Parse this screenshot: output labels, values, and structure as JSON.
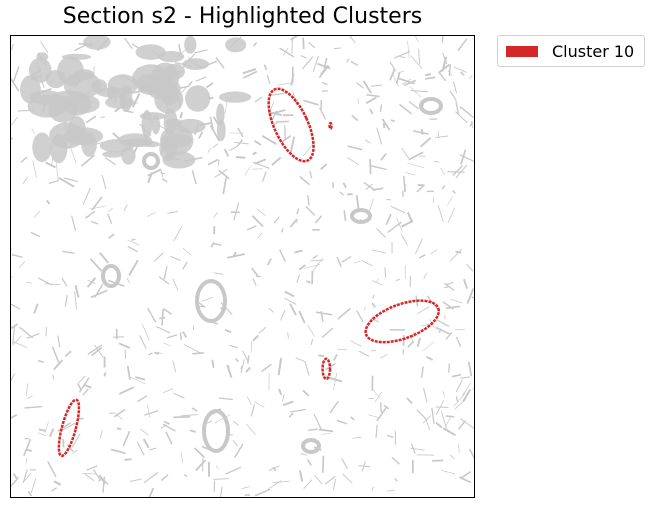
{
  "chart_data": {
    "type": "scatter",
    "title": "Section s2 - Highlighted Clusters",
    "xlabel": "",
    "ylabel": "",
    "axes_visible": false,
    "grid": false,
    "legend_position": "outside-top-right",
    "background_color": "#c8c8c8",
    "series": [
      {
        "name": "Cluster 10",
        "color": "#d62728",
        "regions": [
          {
            "cx": 0.605,
            "cy": 0.807,
            "rx": 0.036,
            "ry": 0.085,
            "angle": -25
          },
          {
            "cx": 0.845,
            "cy": 0.381,
            "rx": 0.083,
            "ry": 0.037,
            "angle": -20
          },
          {
            "cx": 0.681,
            "cy": 0.278,
            "rx": 0.008,
            "ry": 0.022,
            "angle": 0
          },
          {
            "cx": 0.125,
            "cy": 0.15,
            "rx": 0.015,
            "ry": 0.063,
            "angle": 15
          },
          {
            "cx": 0.69,
            "cy": 0.805,
            "rx": 0.002,
            "ry": 0.006,
            "angle": 0
          }
        ]
      }
    ]
  }
}
